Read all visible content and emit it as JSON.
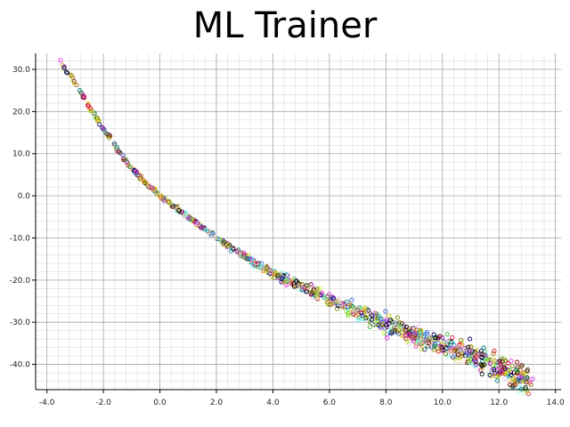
{
  "window": {
    "title": "ML Trainer"
  },
  "chart_data": {
    "type": "scatter",
    "title": "ML Trainer",
    "xlabel": "",
    "ylabel": "",
    "xlim": [
      -4.4,
      14.2
    ],
    "ylim": [
      -46.0,
      33.8
    ],
    "x_ticks": [
      -4.0,
      -2.0,
      0.0,
      2.0,
      4.0,
      6.0,
      8.0,
      10.0,
      12.0,
      14.0
    ],
    "x_tick_labels": [
      "-4.0",
      "-2.0",
      "0.0",
      "2.0",
      "4.0",
      "6.0",
      "8.0",
      "10.0",
      "12.0",
      "14.0"
    ],
    "y_ticks": [
      30,
      20,
      10,
      0,
      -10,
      -20,
      -30,
      -40
    ],
    "y_tick_labels": [
      "30.0",
      "20.0",
      "10.0",
      "0.0",
      "-10.0",
      "-20.0",
      "-30.0",
      "-40.0"
    ],
    "grid": true,
    "marker": "hollow-circle",
    "curve_points": [
      {
        "x": -3.6,
        "y": 32.5
      },
      {
        "x": -3.0,
        "y": 27.0
      },
      {
        "x": -2.5,
        "y": 21.0
      },
      {
        "x": -2.0,
        "y": 16.0
      },
      {
        "x": -1.5,
        "y": 11.0
      },
      {
        "x": -1.0,
        "y": 6.5
      },
      {
        "x": -0.5,
        "y": 3.0
      },
      {
        "x": 0.0,
        "y": 0.0
      },
      {
        "x": 1.0,
        "y": -5.0
      },
      {
        "x": 2.0,
        "y": -10.0
      },
      {
        "x": 3.0,
        "y": -14.5
      },
      {
        "x": 4.0,
        "y": -18.5
      },
      {
        "x": 5.0,
        "y": -21.5
      },
      {
        "x": 6.0,
        "y": -24.5
      },
      {
        "x": 7.0,
        "y": -27.5
      },
      {
        "x": 8.0,
        "y": -30.5
      },
      {
        "x": 9.0,
        "y": -33.0
      },
      {
        "x": 10.0,
        "y": -35.5
      },
      {
        "x": 11.0,
        "y": -37.5
      },
      {
        "x": 12.0,
        "y": -40.5
      },
      {
        "x": 12.5,
        "y": -42.5
      },
      {
        "x": 13.2,
        "y": -45.0
      }
    ],
    "point_count": 1100,
    "colors": [
      "#e6194b",
      "#3cb44b",
      "#c8c800",
      "#4363d8",
      "#f58231",
      "#911eb4",
      "#46f0f0",
      "#f032e6",
      "#bcf60c",
      "#800000",
      "#008080",
      "#9a6324",
      "#000075",
      "#000000",
      "#808000",
      "#e6beff",
      "#aaffc3",
      "#ffd8b1"
    ]
  }
}
